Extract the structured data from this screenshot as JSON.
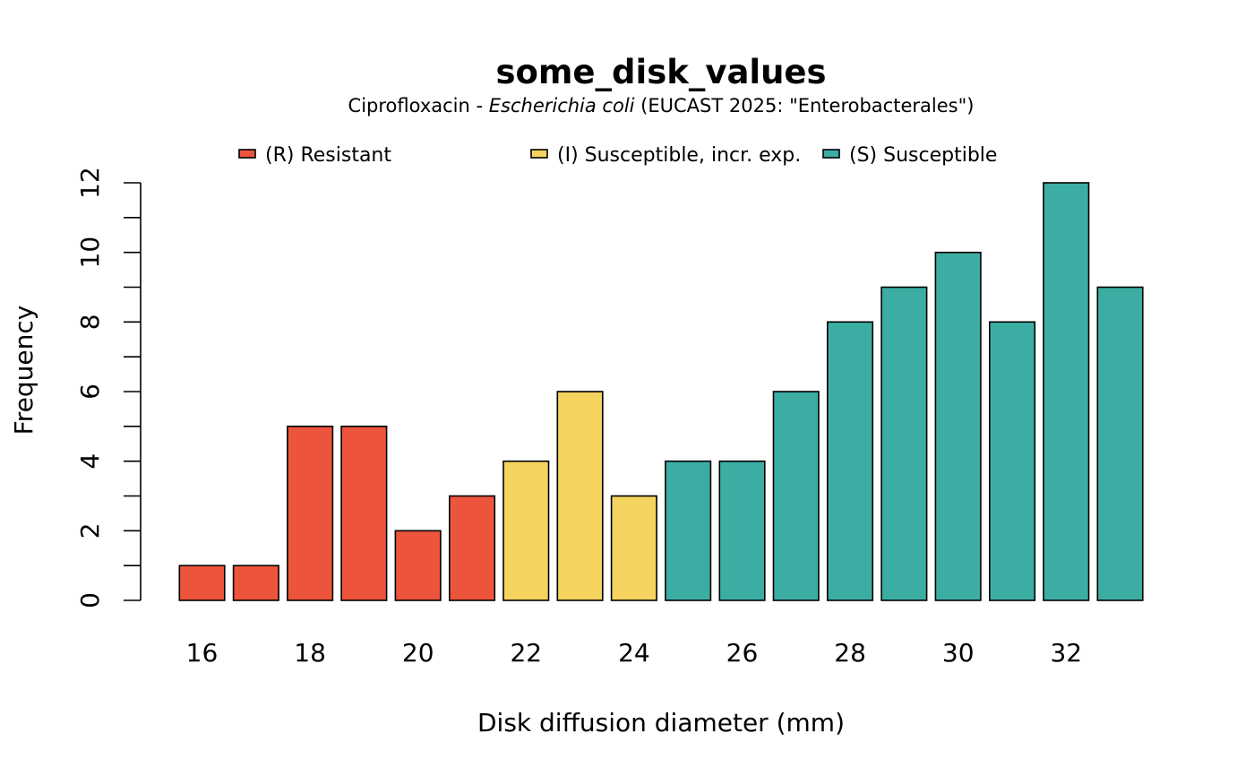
{
  "chart_data": {
    "type": "bar",
    "title": "some_disk_values",
    "subtitle": {
      "prefix": "Ciprofloxacin - ",
      "organism": "Escherichia coli",
      "suffix": " (EUCAST 2025: \"Enterobacterales\")"
    },
    "xlabel": "Disk diffusion diameter (mm)",
    "ylabel": "Frequency",
    "ylim": [
      0,
      12
    ],
    "y_ticks": [
      0,
      2,
      4,
      6,
      8,
      10,
      12
    ],
    "x_tick_labels": [
      "16",
      "18",
      "20",
      "22",
      "24",
      "26",
      "28",
      "30",
      "32"
    ],
    "categories": [
      16,
      17,
      18,
      19,
      20,
      21,
      22,
      23,
      24,
      25,
      26,
      27,
      28,
      29,
      30,
      31,
      32,
      33
    ],
    "values": [
      1,
      1,
      5,
      5,
      2,
      3,
      4,
      6,
      3,
      4,
      4,
      6,
      8,
      9,
      10,
      8,
      12,
      9
    ],
    "interpretation": [
      "R",
      "R",
      "R",
      "R",
      "R",
      "R",
      "I",
      "I",
      "I",
      "S",
      "S",
      "S",
      "S",
      "S",
      "S",
      "S",
      "S",
      "S"
    ],
    "legend": {
      "position": "top",
      "entries": [
        {
          "key": "R",
          "label": "(R) Resistant",
          "color": "#EC553C"
        },
        {
          "key": "I",
          "label": "(I) Susceptible, incr. exp.",
          "color": "#F4D35E"
        },
        {
          "key": "S",
          "label": "(S) Susceptible",
          "color": "#3CADA3"
        }
      ]
    },
    "grid": false
  }
}
